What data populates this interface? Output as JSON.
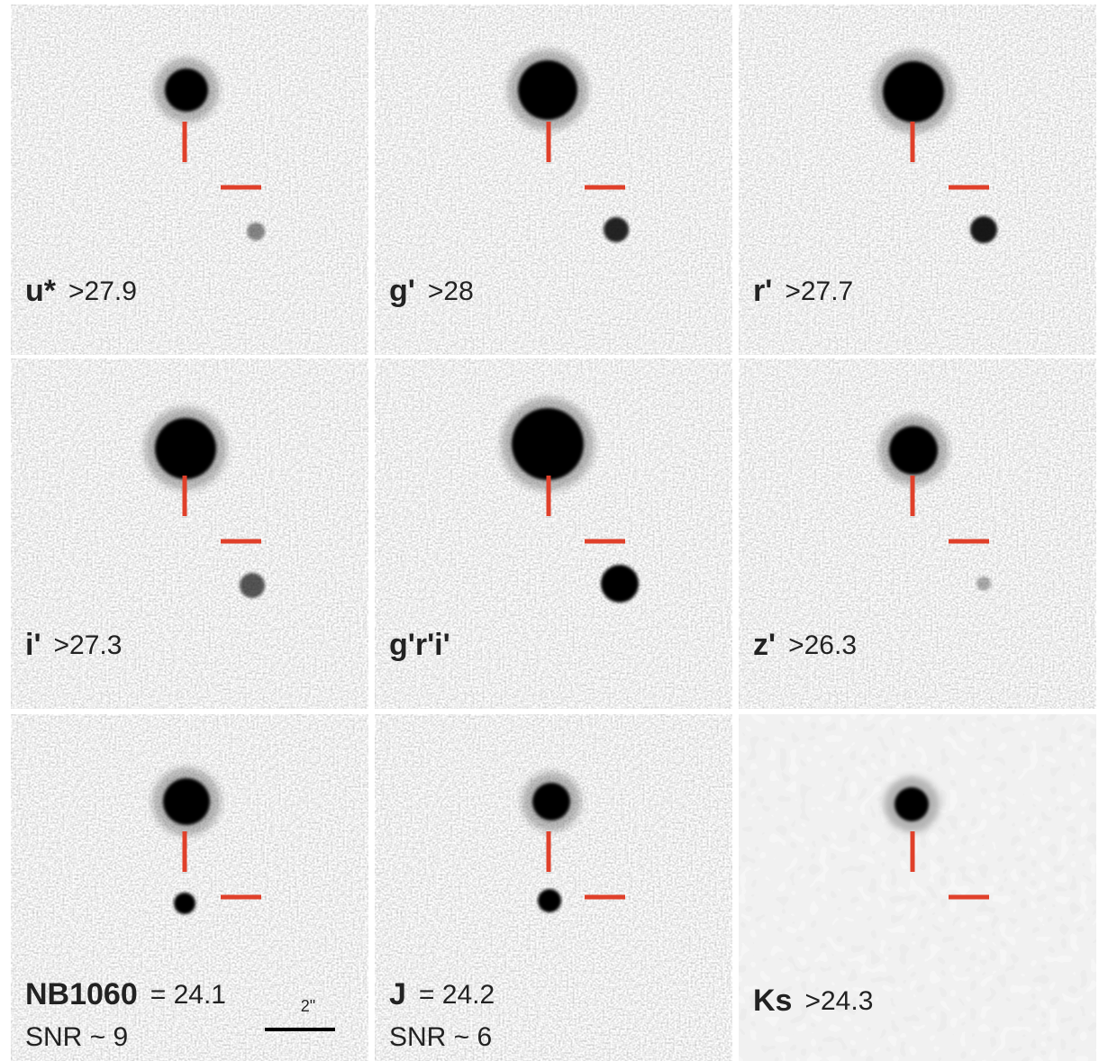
{
  "panels": [
    {
      "band": "u*",
      "value": ">27.9"
    },
    {
      "band": "g'",
      "value": ">28"
    },
    {
      "band": "r'",
      "value": ">27.7"
    },
    {
      "band": "i'",
      "value": ">27.3"
    },
    {
      "band": "g'r'i'"
    },
    {
      "band": "z'",
      "value": ">26.3"
    },
    {
      "band": "NB1060",
      "value": "= 24.1",
      "snr": "SNR ~ 9",
      "scale": "2\""
    },
    {
      "band": "J",
      "value": "= 24.2",
      "snr": "SNR ~ 6"
    },
    {
      "band": "Ks",
      "value": ">24.3"
    }
  ]
}
